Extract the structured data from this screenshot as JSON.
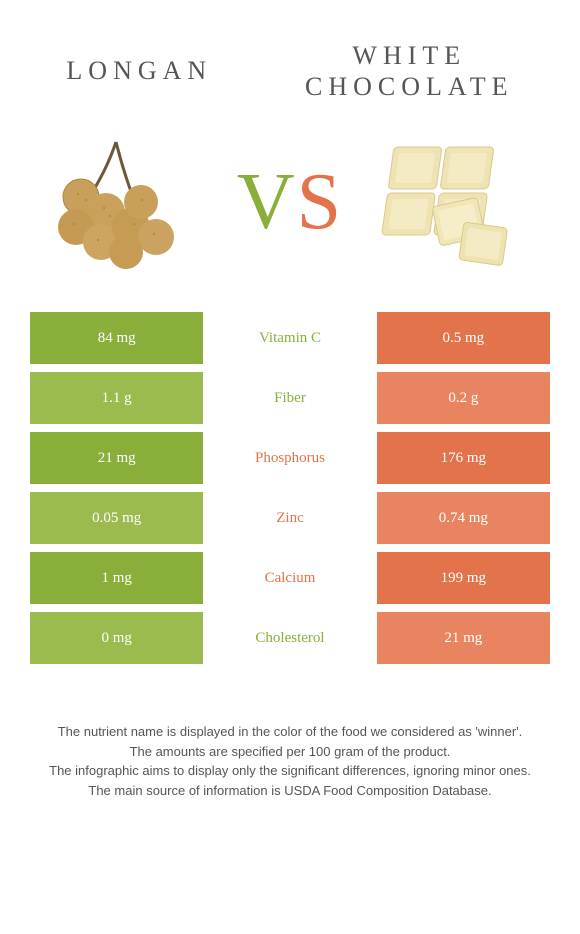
{
  "header": {
    "left_title": "LONGAN",
    "right_title_line1": "WHITE",
    "right_title_line2": "CHOCOLATE",
    "vs_v": "V",
    "vs_s": "S"
  },
  "colors": {
    "green_main": "#8aae3a",
    "green_alt": "#9bbb4f",
    "orange_main": "#e2734a",
    "orange_alt": "#e88560",
    "text": "#555555",
    "bg": "#ffffff"
  },
  "rows": [
    {
      "nutrient": "Vitamin C",
      "left": "84 mg",
      "right": "0.5 mg",
      "winner": "green",
      "left_shade": "main",
      "right_shade": "main"
    },
    {
      "nutrient": "Fiber",
      "left": "1.1 g",
      "right": "0.2 g",
      "winner": "green",
      "left_shade": "alt",
      "right_shade": "alt"
    },
    {
      "nutrient": "Phosphorus",
      "left": "21 mg",
      "right": "176 mg",
      "winner": "orange",
      "left_shade": "main",
      "right_shade": "main"
    },
    {
      "nutrient": "Zinc",
      "left": "0.05 mg",
      "right": "0.74 mg",
      "winner": "orange",
      "left_shade": "alt",
      "right_shade": "alt"
    },
    {
      "nutrient": "Calcium",
      "left": "1 mg",
      "right": "199 mg",
      "winner": "orange",
      "left_shade": "main",
      "right_shade": "main"
    },
    {
      "nutrient": "Cholesterol",
      "left": "0 mg",
      "right": "21 mg",
      "winner": "green",
      "left_shade": "alt",
      "right_shade": "alt"
    }
  ],
  "footer": {
    "l1": "The nutrient name is displayed in the color of the food we considered as 'winner'.",
    "l2": "The amounts are specified per 100 gram of the product.",
    "l3": "The infographic aims to display only the significant differences, ignoring minor ones.",
    "l4": "The main source of information is USDA Food Composition Database."
  }
}
